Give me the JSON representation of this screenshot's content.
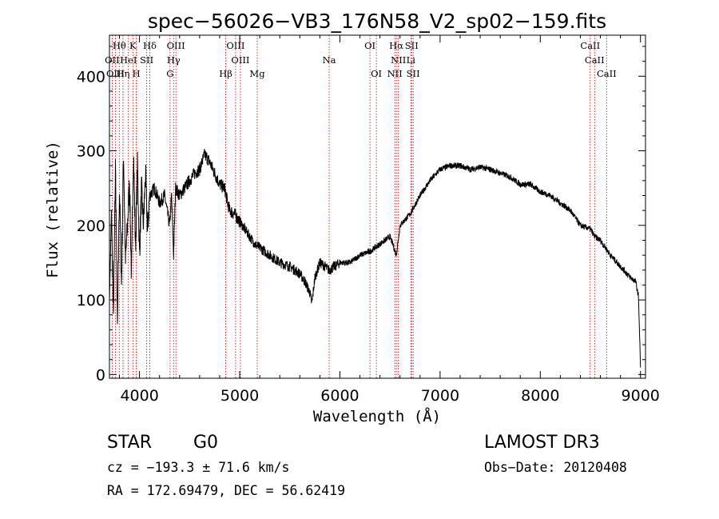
{
  "chart_data": {
    "type": "line",
    "title": "spec−56026−VB3_176N58_V2_sp02−159.fits",
    "xlabel": "Wavelength (Å)",
    "ylabel": "Flux (relative)",
    "xlim": [
      3700,
      9050
    ],
    "ylim": [
      -5,
      455
    ],
    "xticks": [
      4000,
      5000,
      6000,
      7000,
      8000,
      9000
    ],
    "xtick_labels": [
      "4000",
      "5000",
      "6000",
      "7000",
      "8000",
      "9000"
    ],
    "yticks": [
      0,
      100,
      200,
      300,
      400
    ],
    "ytick_labels": [
      "0",
      "100",
      "200",
      "300",
      "400"
    ],
    "grid": false,
    "series": [
      {
        "name": "spectrum",
        "x": [
          3700,
          3720,
          3740,
          3760,
          3780,
          3800,
          3820,
          3840,
          3860,
          3880,
          3900,
          3920,
          3940,
          3960,
          3980,
          4000,
          4020,
          4040,
          4060,
          4080,
          4100,
          4150,
          4200,
          4250,
          4300,
          4320,
          4340,
          4360,
          4400,
          4450,
          4500,
          4550,
          4600,
          4650,
          4700,
          4750,
          4800,
          4850,
          4880,
          4900,
          4950,
          5000,
          5100,
          5150,
          5200,
          5300,
          5400,
          5500,
          5600,
          5650,
          5700,
          5720,
          5750,
          5800,
          5850,
          5890,
          5950,
          6000,
          6100,
          6200,
          6300,
          6400,
          6500,
          6540,
          6563,
          6600,
          6700,
          6800,
          6900,
          7000,
          7100,
          7200,
          7300,
          7400,
          7500,
          7600,
          7700,
          7800,
          7900,
          8000,
          8100,
          8200,
          8300,
          8400,
          8500,
          8542,
          8600,
          8700,
          8800,
          8900,
          8950,
          8980,
          9000
        ],
        "values": [
          100,
          220,
          80,
          280,
          60,
          250,
          120,
          300,
          150,
          200,
          260,
          130,
          300,
          170,
          280,
          160,
          250,
          200,
          270,
          190,
          240,
          250,
          230,
          240,
          200,
          240,
          160,
          250,
          240,
          250,
          260,
          270,
          275,
          295,
          285,
          270,
          255,
          250,
          230,
          220,
          215,
          205,
          185,
          175,
          170,
          160,
          150,
          145,
          135,
          125,
          110,
          95,
          130,
          150,
          145,
          140,
          145,
          150,
          150,
          160,
          165,
          175,
          185,
          170,
          160,
          200,
          215,
          240,
          260,
          275,
          280,
          280,
          275,
          278,
          275,
          270,
          265,
          255,
          255,
          245,
          240,
          230,
          220,
          200,
          195,
          185,
          180,
          160,
          145,
          130,
          125,
          105,
          10
        ]
      }
    ],
    "line_ids": [
      {
        "label": "Hθ",
        "wl": 3798,
        "row": 1
      },
      {
        "label": "K",
        "wl": 3934,
        "row": 1
      },
      {
        "label": "Hδ",
        "wl": 4102,
        "row": 1
      },
      {
        "label": "OIII",
        "wl": 4363,
        "row": 1
      },
      {
        "label": "OIII",
        "wl": 4959,
        "row": 1
      },
      {
        "label": "OI",
        "wl": 6300,
        "row": 1
      },
      {
        "label": "Hα",
        "wl": 6563,
        "row": 1
      },
      {
        "label": "SII",
        "wl": 6716,
        "row": 1
      },
      {
        "label": "CaII",
        "wl": 8498,
        "row": 1
      },
      {
        "label": "OII",
        "wl": 3727,
        "row": 2
      },
      {
        "label": "HeI",
        "wl": 3889,
        "row": 2
      },
      {
        "label": "SII",
        "wl": 4072,
        "row": 2
      },
      {
        "label": "Hγ",
        "wl": 4340,
        "row": 2
      },
      {
        "label": "OIII",
        "wl": 5007,
        "row": 2
      },
      {
        "label": "Na",
        "wl": 5893,
        "row": 2
      },
      {
        "label": "NII",
        "wl": 6584,
        "row": 2
      },
      {
        "label": "Li",
        "wl": 6708,
        "row": 2
      },
      {
        "label": "CaII",
        "wl": 8542,
        "row": 2
      },
      {
        "label": "OIII",
        "wl": 3760,
        "row": 3
      },
      {
        "label": "Hη",
        "wl": 3835,
        "row": 3
      },
      {
        "label": "H",
        "wl": 3968,
        "row": 3
      },
      {
        "label": "G",
        "wl": 4305,
        "row": 3
      },
      {
        "label": "Hβ",
        "wl": 4861,
        "row": 3
      },
      {
        "label": "Mg",
        "wl": 5175,
        "row": 3
      },
      {
        "label": "OI",
        "wl": 6364,
        "row": 3
      },
      {
        "label": "NII",
        "wl": 6548,
        "row": 3
      },
      {
        "label": "SII",
        "wl": 6731,
        "row": 3
      },
      {
        "label": "CaII",
        "wl": 8662,
        "row": 3
      }
    ]
  },
  "info": {
    "object_class": "STAR",
    "subclass": "G0",
    "survey": "LAMOST DR3",
    "cz": "cz = −193.3 ± 71.6 km/s",
    "obs_date": "Obs−Date: 20120408",
    "radec": "RA = 172.69479, DEC =  56.62419"
  },
  "colors": {
    "spectrum": "#000000",
    "line_id": "#cc0000",
    "axes": "#000000"
  }
}
